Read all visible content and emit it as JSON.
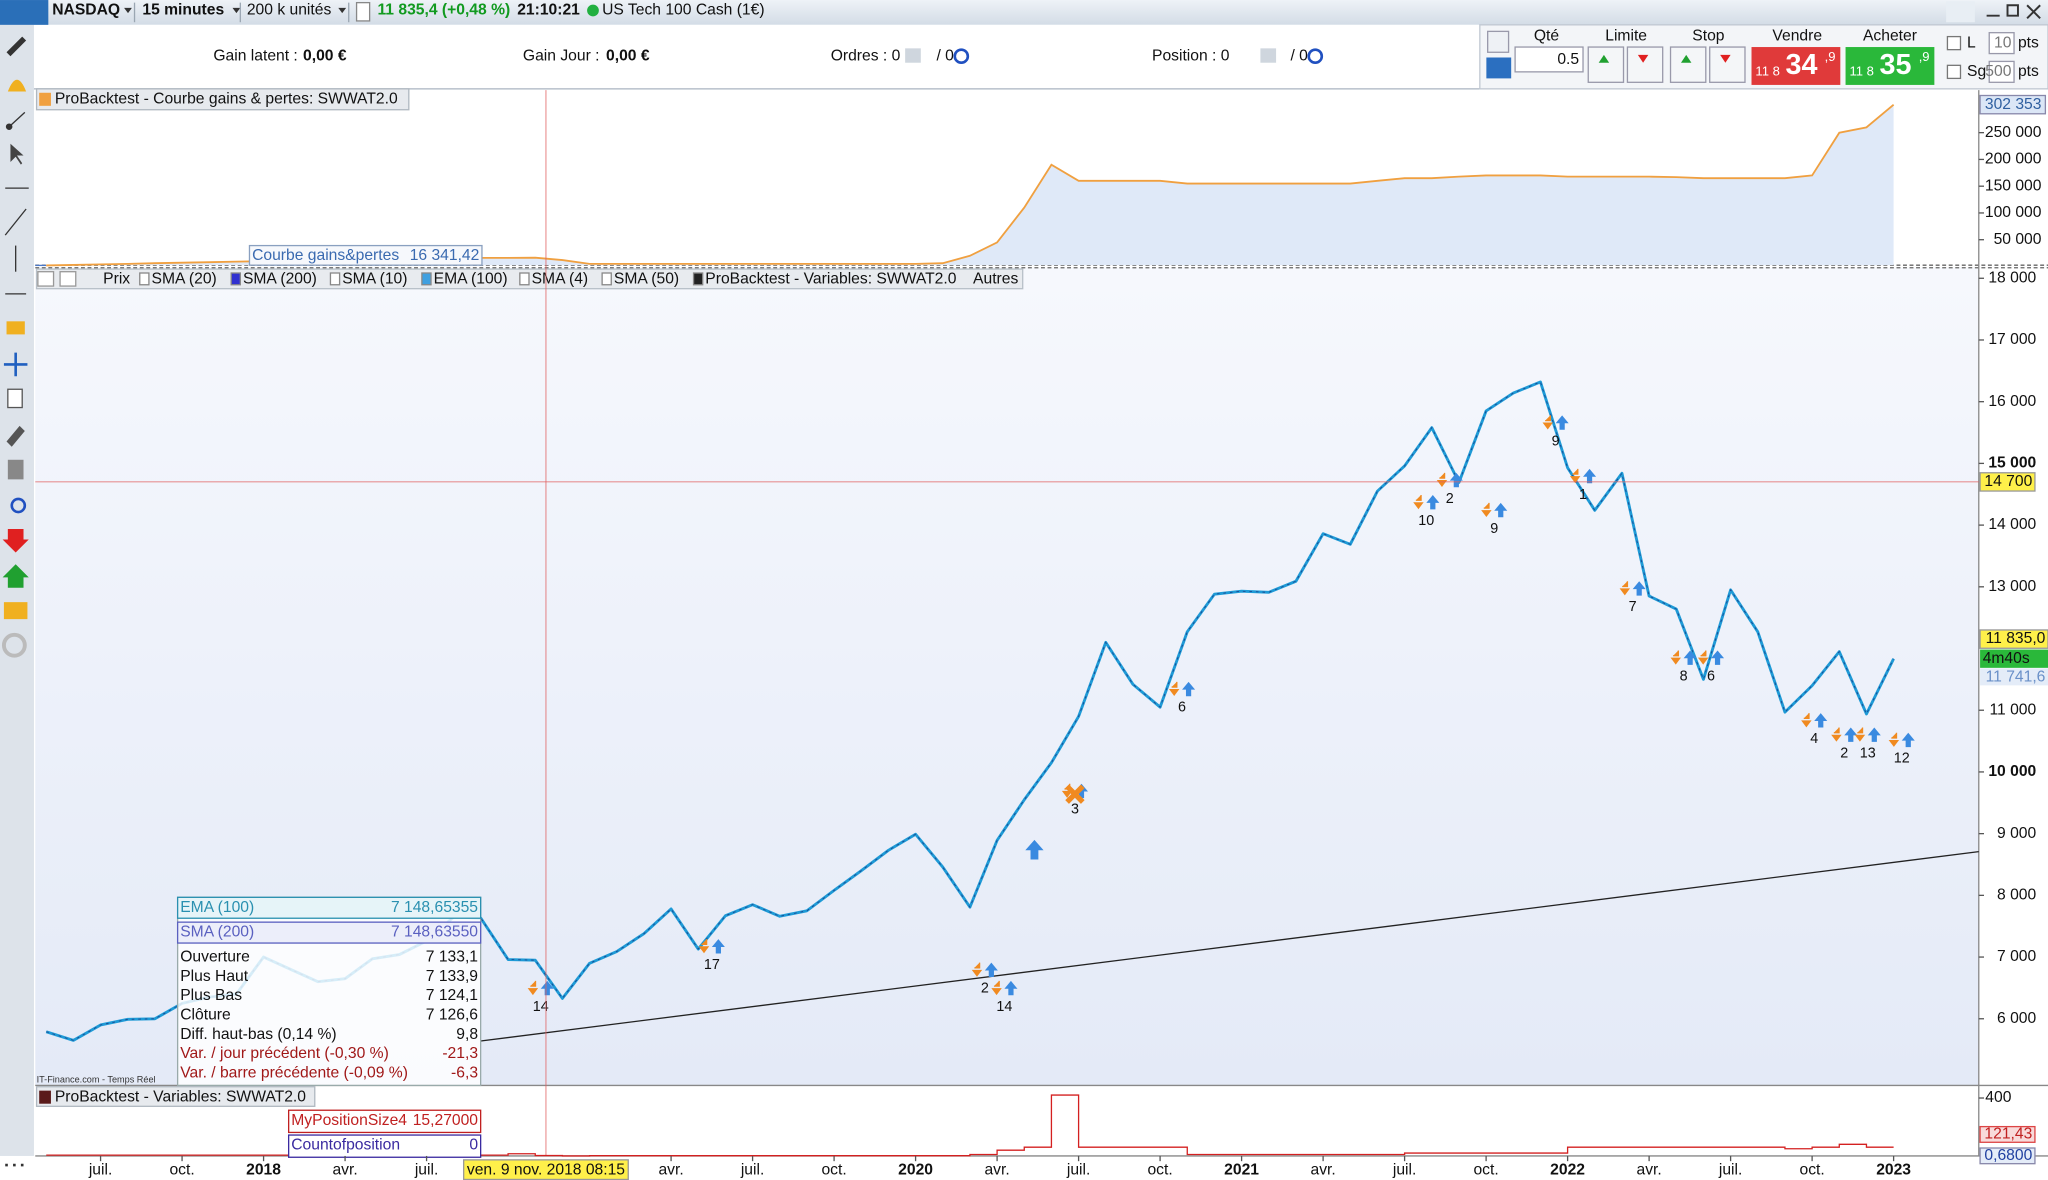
{
  "top_bar": {
    "instrument": "NASDAQ",
    "timeframe": "15 minutes",
    "units": "200 k unités",
    "quote": "11 835,4 (+0,48 %)",
    "time": "21:10:21",
    "product": "US Tech 100 Cash (1€)"
  },
  "account_bar": {
    "gain_latent": {
      "label": "Gain latent :",
      "value": "0,00 €"
    },
    "gain_jour": {
      "label": "Gain Jour :",
      "value": "0,00 €"
    },
    "orders": {
      "label": "Ordres : 0",
      "pending": "/ 0"
    },
    "position": {
      "label": "Position : 0",
      "pending": "/ 0"
    }
  },
  "order_panel": {
    "qty_label": "Qté",
    "qty": "0.5",
    "limit_label": "Limite",
    "stop_label": "Stop",
    "sell_label": "Vendre",
    "sell_prefix": "11 8",
    "sell_main": "34",
    "sell_decimal": ",9",
    "buy_label": "Acheter",
    "buy_prefix": "11 8",
    "buy_main": "35",
    "buy_decimal": ",9",
    "l_label": "L",
    "l_value": "10",
    "l_unit": "pts",
    "sg_label": "Sg",
    "sg_value": "500",
    "sg_unit": "pts"
  },
  "gain_panel": {
    "title": "ProBacktest - Courbe gains & pertes: SWWAT2.0",
    "cursor_label": "Courbe gains&pertes",
    "cursor_value": "16 341,42",
    "color": "#f0a040",
    "fill": "#dfe9f8",
    "ylim": [
      0,
      327000
    ],
    "yticks": [
      {
        "value": 50000,
        "label": "50 000"
      },
      {
        "value": 100000,
        "label": "100 000"
      },
      {
        "value": 150000,
        "label": "150 000"
      },
      {
        "value": 200000,
        "label": "200 000"
      },
      {
        "value": 250000,
        "label": "250 000"
      }
    ],
    "last": {
      "value": 302353,
      "label": "302 353"
    },
    "values": [
      2000,
      3000,
      4000,
      5000,
      6000,
      7000,
      8000,
      9000,
      10000,
      11000,
      12000,
      13000,
      14000,
      15000,
      16000,
      16000,
      16000,
      16000,
      16341,
      12000,
      5000,
      5000,
      5000,
      5000,
      5000,
      5000,
      5000,
      5000,
      5000,
      5000,
      5000,
      5000,
      5000,
      6000,
      20000,
      45000,
      110000,
      190000,
      160000,
      160000,
      160000,
      160000,
      155000,
      155000,
      155000,
      155000,
      155000,
      155000,
      155000,
      160000,
      165000,
      165000,
      168000,
      170000,
      170000,
      170000,
      168000,
      168000,
      168000,
      168000,
      167000,
      165000,
      165000,
      165000,
      165000,
      170000,
      250000,
      260000,
      302353
    ]
  },
  "price_panel": {
    "legend": [
      "Prix",
      "SMA (20)",
      "SMA (200)",
      "SMA (10)",
      "EMA (100)",
      "SMA (4)",
      "SMA (50)",
      "ProBacktest - Variables: SWWAT2.0",
      "Autres"
    ],
    "color": "#1e9ad6",
    "ylim": [
      4920,
      18170
    ],
    "yticks": [
      {
        "value": 6000,
        "label": "6 000"
      },
      {
        "value": 7000,
        "label": "7 000"
      },
      {
        "value": 8000,
        "label": "8 000"
      },
      {
        "value": 9000,
        "label": "9 000"
      },
      {
        "value": 10000,
        "label": "10 000"
      },
      {
        "value": 11000,
        "label": "11 000"
      },
      {
        "value": 13000,
        "label": "13 000"
      },
      {
        "value": 14000,
        "label": "14 000"
      },
      {
        "value": 15000,
        "label": "15 000"
      },
      {
        "value": 16000,
        "label": "16 000"
      },
      {
        "value": 17000,
        "label": "17 000"
      },
      {
        "value": 18000,
        "label": "18 000"
      }
    ],
    "crosshair": {
      "value": 14700,
      "label": "14 700"
    },
    "last": {
      "value": 11835,
      "label": "11 835,0"
    },
    "timer": "4m40s",
    "other": {
      "value": 11741.6,
      "label": "11 741,6"
    },
    "values": [
      5790,
      5650,
      5900,
      5990,
      6000,
      6250,
      6350,
      6400,
      7000,
      6800,
      6600,
      6650,
      6970,
      7040,
      7260,
      7650,
      7630,
      6960,
      6950,
      6330,
      6900,
      7090,
      7380,
      7780,
      7130,
      7670,
      7850,
      7660,
      7750,
      8080,
      8400,
      8730,
      8990,
      8460,
      7810,
      8890,
      9550,
      10150,
      10900,
      12100,
      11420,
      11050,
      12270,
      12880,
      12930,
      12910,
      13090,
      13860,
      13690,
      14550,
      14960,
      15580,
      14690,
      15850,
      16140,
      16320,
      14930,
      14240,
      14840,
      12850,
      12640,
      11500,
      12950,
      12270,
      10970,
      11400,
      11950,
      10940,
      11835
    ],
    "signals": [
      "14",
      "17",
      "2",
      "14",
      "3",
      "6",
      "10",
      "2",
      "9",
      "9",
      "1",
      "7",
      "8",
      "6",
      "4",
      "2",
      "13",
      "12"
    ],
    "info": [
      {
        "label": "EMA (100)",
        "value": "7 148,65355"
      },
      {
        "label": "SMA (200)",
        "value": "7 148,63550"
      },
      {
        "label": "Ouverture",
        "value": "7 133,1"
      },
      {
        "label": "Plus Haut",
        "value": "7 133,9"
      },
      {
        "label": "Plus Bas",
        "value": "7 124,1"
      },
      {
        "label": "Clôture",
        "value": "7 126,6"
      },
      {
        "label": "Diff. haut-bas (0,14 %)",
        "value": "9,8"
      },
      {
        "label": "Var. / jour précédent (-0,30 %)",
        "value": "-21,3"
      },
      {
        "label": "Var. / barre précédente (-0,09 %)",
        "value": "-6,3"
      }
    ],
    "source": "IT-Finance.com - Temps Réel"
  },
  "variables_panel": {
    "title": "ProBacktest - Variables: SWWAT2.0",
    "color": "#d42020",
    "ylim": [
      0,
      460
    ],
    "yticks": [
      400
    ],
    "markers": [
      {
        "value": 121.43,
        "label": "121,43"
      },
      {
        "value": 0.68,
        "label": "0,6800"
      }
    ],
    "rows": [
      {
        "label": "MyPositionSize4",
        "value": "15,27000"
      },
      {
        "label": "Countofposition",
        "value": "0"
      }
    ],
    "values": [
      5,
      5,
      5,
      5,
      5,
      5,
      5,
      5,
      5,
      5,
      5,
      5,
      5,
      5,
      5,
      5,
      5,
      15,
      3,
      0,
      2,
      2,
      2,
      2,
      2,
      2,
      2,
      2,
      2,
      2,
      2,
      2,
      2,
      2,
      10,
      40,
      60,
      420,
      60,
      60,
      60,
      60,
      10,
      10,
      10,
      10,
      10,
      10,
      10,
      10,
      20,
      20,
      20,
      20,
      20,
      20,
      60,
      60,
      60,
      60,
      60,
      60,
      60,
      60,
      50,
      60,
      80,
      60,
      60
    ]
  },
  "x_axis": {
    "labels": [
      "juil.",
      "oct.",
      "2018",
      "avr.",
      "juil.",
      "avr.",
      "juil.",
      "oct.",
      "2020",
      "avr.",
      "juil.",
      "oct.",
      "2021",
      "avr.",
      "juil.",
      "oct.",
      "2022",
      "avr.",
      "juil.",
      "oct.",
      "2023"
    ],
    "cursor": "ven. 9 nov. 2018 08:15"
  }
}
